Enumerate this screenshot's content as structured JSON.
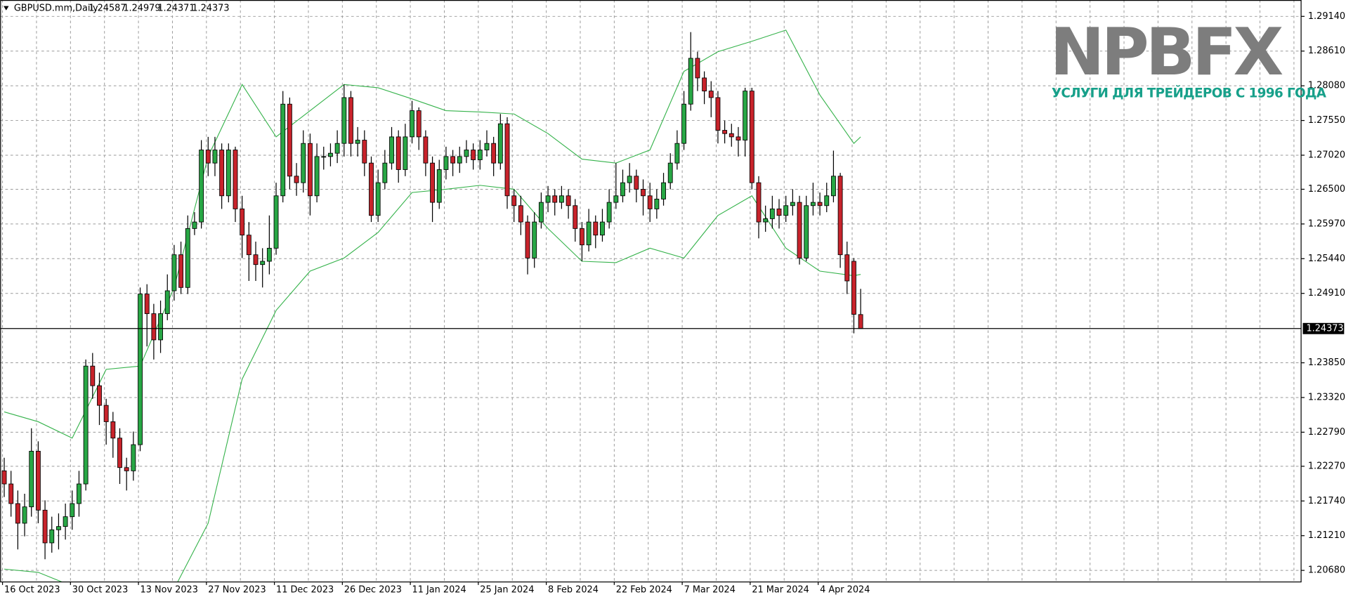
{
  "chart_data": {
    "type": "candlestick",
    "title": "GBPUSD.mm,Daily",
    "categories": [
      "16 Oct 2023",
      null,
      null,
      null,
      null,
      null,
      null,
      null,
      null,
      null,
      "30 Oct 2023",
      null,
      null,
      null,
      null,
      null,
      null,
      null,
      null,
      null,
      "13 Nov 2023",
      null,
      null,
      null,
      null,
      null,
      null,
      null,
      null,
      null,
      "27 Nov 2023",
      null,
      null,
      null,
      null,
      null,
      null,
      null,
      null,
      null,
      "11 Dec 2023",
      null,
      null,
      null,
      null,
      null,
      null,
      null,
      null,
      null,
      "26 Dec 2023",
      null,
      null,
      null,
      null,
      null,
      null,
      null,
      null,
      null,
      "11 Jan 2024",
      null,
      null,
      null,
      null,
      null,
      null,
      null,
      null,
      null,
      "25 Jan 2024",
      null,
      null,
      null,
      null,
      null,
      null,
      null,
      null,
      null,
      "8 Feb 2024",
      null,
      null,
      null,
      null,
      null,
      null,
      null,
      null,
      null,
      "22 Feb 2024",
      null,
      null,
      null,
      null,
      null,
      null,
      null,
      null,
      null,
      "7 Mar 2024",
      null,
      null,
      null,
      null,
      null,
      null,
      null,
      null,
      null,
      "21 Mar 2024",
      null,
      null,
      null,
      null,
      null,
      null,
      null,
      null,
      null,
      "4 Apr 2024",
      null,
      null,
      null,
      null,
      null,
      null
    ],
    "open": [
      1.222,
      1.22,
      1.217,
      1.214,
      1.2165,
      1.225,
      1.216,
      1.211,
      1.213,
      1.2135,
      1.215,
      1.217,
      1.22,
      1.238,
      1.235,
      1.232,
      1.2295,
      1.227,
      1.2225,
      1.222,
      1.226,
      1.249,
      1.246,
      1.242,
      1.246,
      1.2495,
      1.255,
      1.25,
      1.259,
      1.26,
      1.271,
      1.269,
      1.271,
      1.264,
      1.271,
      1.262,
      1.258,
      1.255,
      1.2535,
      1.254,
      1.256,
      1.264,
      1.278,
      1.267,
      1.266,
      1.272,
      1.264,
      1.27,
      1.27,
      1.2705,
      1.272,
      1.279,
      1.272,
      1.2725,
      1.269,
      1.261,
      1.266,
      1.269,
      1.273,
      1.268,
      1.273,
      1.277,
      1.273,
      1.269,
      1.263,
      1.268,
      1.27,
      1.269,
      1.27,
      1.271,
      1.2695,
      1.271,
      1.272,
      1.269,
      1.275,
      1.264,
      1.2625,
      1.26,
      1.2545,
      1.26,
      1.263,
      1.264,
      1.263,
      1.264,
      1.2625,
      1.259,
      1.2565,
      1.26,
      1.258,
      1.26,
      1.263,
      1.264,
      1.266,
      1.267,
      1.265,
      1.264,
      1.262,
      1.2635,
      1.266,
      1.269,
      1.272,
      1.278,
      1.285,
      1.282,
      1.28,
      1.279,
      1.274,
      1.2735,
      1.273,
      1.2725,
      1.28,
      1.266,
      1.26,
      1.2605,
      1.262,
      1.261,
      1.2625,
      1.263,
      1.2545,
      1.2625,
      1.263,
      1.2625,
      1.264,
      1.267,
      1.255,
      1.254,
      1.24587
    ],
    "high": [
      1.224,
      1.222,
      1.219,
      1.2185,
      1.2285,
      1.2265,
      1.2175,
      1.215,
      1.2155,
      1.217,
      1.219,
      1.222,
      1.239,
      1.24,
      1.237,
      1.233,
      1.231,
      1.2285,
      1.224,
      1.228,
      1.25,
      1.2505,
      1.2475,
      1.248,
      1.252,
      1.2565,
      1.257,
      1.261,
      1.2615,
      1.2725,
      1.273,
      1.273,
      1.272,
      1.272,
      1.2715,
      1.264,
      1.26,
      1.257,
      1.256,
      1.261,
      1.266,
      1.28,
      1.279,
      1.269,
      1.274,
      1.2735,
      1.272,
      1.2715,
      1.272,
      1.274,
      1.281,
      1.28,
      1.2745,
      1.274,
      1.27,
      1.268,
      1.271,
      1.2745,
      1.274,
      1.275,
      1.2785,
      1.2775,
      1.274,
      1.27,
      1.2695,
      1.2715,
      1.271,
      1.2715,
      1.2725,
      1.272,
      1.2725,
      1.274,
      1.273,
      1.2765,
      1.276,
      1.265,
      1.264,
      1.261,
      1.2615,
      1.2645,
      1.2655,
      1.265,
      1.2655,
      1.265,
      1.2635,
      1.26,
      1.262,
      1.261,
      1.262,
      1.265,
      1.269,
      1.268,
      1.269,
      1.268,
      1.2665,
      1.266,
      1.265,
      1.2675,
      1.2705,
      1.274,
      1.28,
      1.289,
      1.286,
      1.283,
      1.2815,
      1.28,
      1.2755,
      1.275,
      1.2745,
      1.2805,
      1.2805,
      1.267,
      1.2625,
      1.264,
      1.2635,
      1.264,
      1.265,
      1.264,
      1.264,
      1.266,
      1.2645,
      1.266,
      1.2709,
      1.2675,
      1.257,
      1.2545,
      1.24979
    ],
    "low": [
      1.218,
      1.215,
      1.21,
      1.212,
      1.215,
      1.214,
      1.2085,
      1.2095,
      1.21,
      1.2115,
      1.213,
      1.215,
      1.219,
      1.233,
      1.229,
      1.226,
      1.224,
      1.22,
      1.219,
      1.2205,
      1.225,
      1.241,
      1.239,
      1.24,
      1.245,
      1.248,
      1.249,
      1.249,
      1.258,
      1.259,
      1.267,
      1.267,
      1.262,
      1.263,
      1.26,
      1.2545,
      1.251,
      1.251,
      1.25,
      1.252,
      1.255,
      1.263,
      1.265,
      1.264,
      1.2645,
      1.261,
      1.263,
      1.268,
      1.2685,
      1.269,
      1.27,
      1.27,
      1.27,
      1.267,
      1.26,
      1.26,
      1.265,
      1.268,
      1.266,
      1.267,
      1.272,
      1.271,
      1.267,
      1.26,
      1.262,
      1.2665,
      1.267,
      1.2675,
      1.269,
      1.268,
      1.268,
      1.27,
      1.267,
      1.268,
      1.262,
      1.26,
      1.258,
      1.252,
      1.253,
      1.259,
      1.2615,
      1.261,
      1.262,
      1.2605,
      1.257,
      1.254,
      1.2555,
      1.256,
      1.257,
      1.259,
      1.262,
      1.263,
      1.2645,
      1.263,
      1.261,
      1.26,
      1.2605,
      1.2625,
      1.265,
      1.268,
      1.271,
      1.277,
      1.28,
      1.278,
      1.276,
      1.272,
      1.272,
      1.2715,
      1.27,
      1.27,
      1.265,
      1.2575,
      1.2585,
      1.259,
      1.259,
      1.26,
      1.261,
      1.2535,
      1.254,
      1.261,
      1.261,
      1.2615,
      1.263,
      1.253,
      1.249,
      1.243,
      1.24371
    ],
    "close": [
      1.22,
      1.217,
      1.214,
      1.2165,
      1.225,
      1.216,
      1.211,
      1.213,
      1.2135,
      1.215,
      1.217,
      1.22,
      1.238,
      1.235,
      1.232,
      1.2295,
      1.227,
      1.2225,
      1.222,
      1.226,
      1.249,
      1.246,
      1.242,
      1.246,
      1.2495,
      1.255,
      1.25,
      1.259,
      1.26,
      1.271,
      1.269,
      1.271,
      1.264,
      1.271,
      1.262,
      1.258,
      1.255,
      1.2535,
      1.254,
      1.256,
      1.264,
      1.278,
      1.267,
      1.266,
      1.272,
      1.264,
      1.27,
      1.27,
      1.2705,
      1.272,
      1.279,
      1.272,
      1.2725,
      1.269,
      1.261,
      1.266,
      1.269,
      1.273,
      1.268,
      1.273,
      1.277,
      1.273,
      1.269,
      1.263,
      1.268,
      1.27,
      1.269,
      1.27,
      1.271,
      1.2695,
      1.271,
      1.272,
      1.269,
      1.275,
      1.264,
      1.2625,
      1.26,
      1.2545,
      1.26,
      1.263,
      1.264,
      1.263,
      1.264,
      1.2625,
      1.259,
      1.2565,
      1.26,
      1.258,
      1.26,
      1.263,
      1.264,
      1.266,
      1.267,
      1.265,
      1.264,
      1.262,
      1.2635,
      1.266,
      1.269,
      1.272,
      1.278,
      1.285,
      1.282,
      1.28,
      1.279,
      1.274,
      1.2735,
      1.273,
      1.2725,
      1.28,
      1.266,
      1.26,
      1.2605,
      1.262,
      1.261,
      1.2625,
      1.263,
      1.2545,
      1.2625,
      1.263,
      1.2625,
      1.264,
      1.267,
      1.255,
      1.251,
      1.2459,
      1.24373
    ],
    "up_color": "#28a745",
    "down_color": "#c8232b",
    "bands": [
      {
        "color": "#34b24a",
        "x": [
          0,
          5,
          10,
          15,
          20,
          25,
          30,
          35,
          40,
          45,
          50,
          55,
          60,
          65,
          70,
          75,
          80,
          85,
          90,
          95,
          100,
          105,
          110,
          115,
          120,
          125,
          126
        ],
        "values": [
          1.231,
          1.2295,
          1.227,
          1.2375,
          1.238,
          1.25,
          1.27,
          1.281,
          1.273,
          1.277,
          1.281,
          1.2805,
          1.2788,
          1.277,
          1.2768,
          1.2765,
          1.2735,
          1.2696,
          1.269,
          1.271,
          1.283,
          1.286,
          1.2876,
          1.2893,
          1.2794,
          1.272,
          1.273
        ]
      },
      {
        "color": "#34b24a",
        "x": [
          0,
          5,
          10,
          15,
          20,
          25,
          30,
          35,
          40,
          45,
          50,
          55,
          60,
          65,
          70,
          75,
          80,
          85,
          90,
          95,
          100,
          105,
          110,
          115,
          120,
          125,
          126
        ],
        "values": [
          1.207,
          1.2065,
          1.2044,
          1.201,
          1.199,
          1.204,
          1.214,
          1.236,
          1.2465,
          1.2525,
          1.2545,
          1.2584,
          1.2645,
          1.265,
          1.2656,
          1.265,
          1.259,
          1.254,
          1.2538,
          1.256,
          1.2545,
          1.261,
          1.264,
          1.256,
          1.2525,
          1.2518,
          1.252
        ]
      }
    ],
    "xlim": [
      -0.6,
      190.8
    ],
    "ylim": [
      1.2051,
      1.2939
    ],
    "yticks": [
      {
        "value": 1.2914,
        "label": "1.29140"
      },
      {
        "value": 1.2861,
        "label": "1.28610"
      },
      {
        "value": 1.2808,
        "label": "1.28080"
      },
      {
        "value": 1.2755,
        "label": "1.27550"
      },
      {
        "value": 1.2702,
        "label": "1.27020"
      },
      {
        "value": 1.265,
        "label": "1.26500"
      },
      {
        "value": 1.2597,
        "label": "1.25970"
      },
      {
        "value": 1.2544,
        "label": "1.25440"
      },
      {
        "value": 1.2491,
        "label": "1.24910"
      },
      {
        "value": 1.2385,
        "label": "1.23850"
      },
      {
        "value": 1.2332,
        "label": "1.23320"
      },
      {
        "value": 1.2279,
        "label": "1.22790"
      },
      {
        "value": 1.2227,
        "label": "1.22270"
      },
      {
        "value": 1.2174,
        "label": "1.21740"
      },
      {
        "value": 1.2121,
        "label": "1.21210"
      },
      {
        "value": 1.2068,
        "label": "1.20680"
      }
    ],
    "grid": true
  },
  "logo": {
    "name": "NPBFX",
    "tagline": "УСЛУГИ ДЛЯ ТРЕЙДЕРОВ С 1996 ГОДА"
  }
}
